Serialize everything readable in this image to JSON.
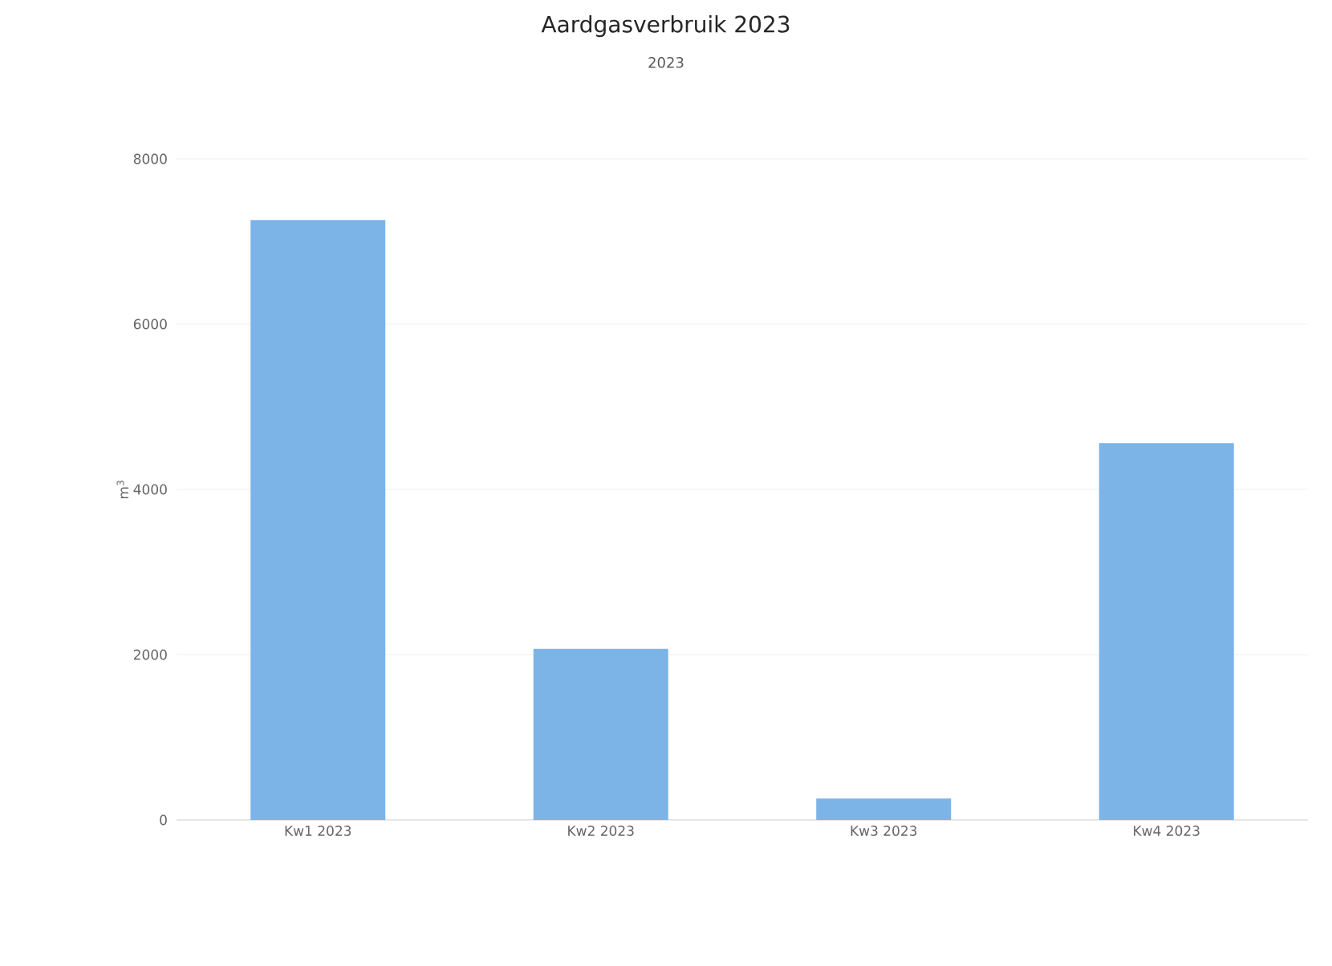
{
  "chart_data": {
    "type": "bar",
    "title": "Aardgasverbruik 2023",
    "subtitle": "2023",
    "ylabel": "m$^{3}$",
    "categories": [
      "Kw1 2023",
      "Kw2 2023",
      "Kw3 2023",
      "Kw4 2023"
    ],
    "series": [
      {
        "color": "#7cb4e8",
        "values": [
          7260,
          2070,
          260,
          4560
        ]
      }
    ],
    "ylim": [
      0,
      8000
    ],
    "yticks": [
      0,
      2000,
      4000,
      6000,
      8000
    ],
    "grid": "y"
  }
}
